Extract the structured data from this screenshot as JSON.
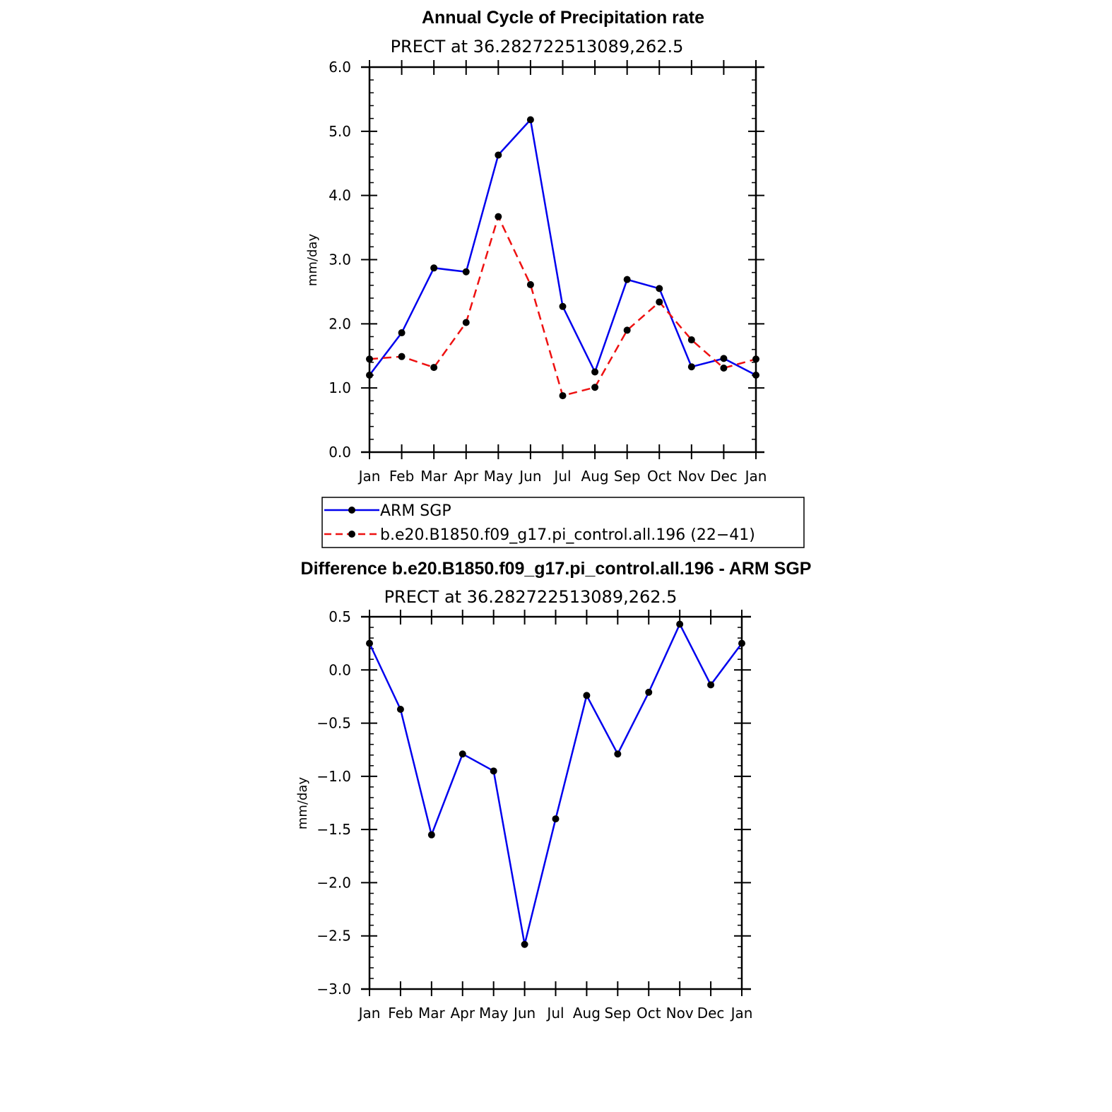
{
  "chart_data": [
    {
      "type": "line",
      "title": "Annual Cycle of Precipitation rate",
      "subtitle": "PRECT at 36.282722513089,262.5",
      "xlabel": "",
      "ylabel": "mm/day",
      "categories": [
        "Jan",
        "Feb",
        "Mar",
        "Apr",
        "May",
        "Jun",
        "Jul",
        "Aug",
        "Sep",
        "Oct",
        "Nov",
        "Dec",
        "Jan"
      ],
      "ylim": [
        0.0,
        6.0
      ],
      "yticks": [
        "0.0",
        "1.0",
        "2.0",
        "3.0",
        "4.0",
        "5.0",
        "6.0"
      ],
      "grid": false,
      "legend_position": "bottom",
      "series": [
        {
          "name": "ARM SGP",
          "color": "#0000ee",
          "dash": "solid",
          "values": [
            1.2,
            1.86,
            2.87,
            2.81,
            4.63,
            5.18,
            2.27,
            1.25,
            2.69,
            2.55,
            1.33,
            1.46,
            1.2
          ]
        },
        {
          "name": "b.e20.B1850.f09_g17.pi_control.all.196 (22−41)",
          "color": "#ee1111",
          "dash": "dashed",
          "values": [
            1.45,
            1.49,
            1.32,
            2.02,
            3.67,
            2.61,
            0.88,
            1.01,
            1.9,
            2.34,
            1.75,
            1.31,
            1.45
          ]
        }
      ]
    },
    {
      "type": "line",
      "title": "Difference b.e20.B1850.f09_g17.pi_control.all.196 - ARM SGP",
      "subtitle": "PRECT at 36.282722513089,262.5",
      "xlabel": "",
      "ylabel": "mm/day",
      "categories": [
        "Jan",
        "Feb",
        "Mar",
        "Apr",
        "May",
        "Jun",
        "Jul",
        "Aug",
        "Sep",
        "Oct",
        "Nov",
        "Dec",
        "Jan"
      ],
      "ylim": [
        -3.0,
        0.5
      ],
      "yticks": [
        "−3.0",
        "−2.5",
        "−2.0",
        "−1.5",
        "−1.0",
        "−0.5",
        "0.0",
        "0.5"
      ],
      "grid": false,
      "series": [
        {
          "color": "#0000ee",
          "dash": "solid",
          "values": [
            0.25,
            -0.37,
            -1.55,
            -0.79,
            -0.95,
            -2.58,
            -1.4,
            -0.24,
            -0.79,
            -0.21,
            0.43,
            -0.14,
            0.25
          ]
        }
      ]
    }
  ]
}
